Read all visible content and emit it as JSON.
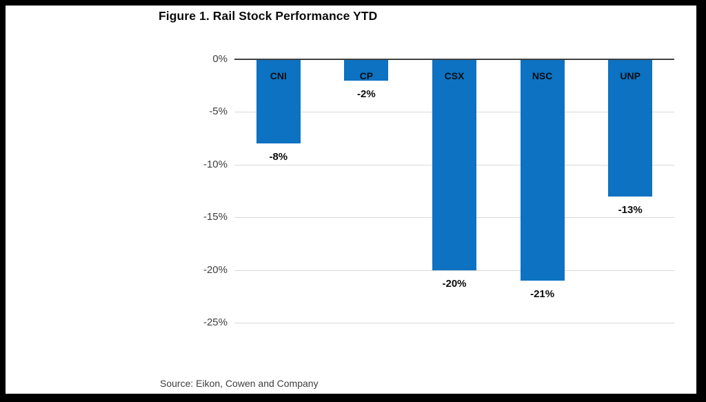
{
  "title": "Figure 1. Rail Stock Performance YTD",
  "source": "Source: Eikon, Cowen and Company",
  "frame": {
    "border_color": "#000000",
    "panel_background": "#ffffff"
  },
  "chart_data": {
    "type": "bar",
    "title": "Figure 1. Rail Stock Performance YTD",
    "categories": [
      "CNI",
      "CP",
      "CSX",
      "NSC",
      "UNP"
    ],
    "values": [
      -8,
      -2,
      -20,
      -21,
      -13
    ],
    "value_labels": [
      "-8%",
      "-2%",
      "-20%",
      "-21%",
      "-13%"
    ],
    "y_ticks": [
      "0%",
      "-5%",
      "-10%",
      "-15%",
      "-20%",
      "-25%"
    ],
    "y_tick_values": [
      0,
      -5,
      -10,
      -15,
      -20,
      -25
    ],
    "ylim": [
      -25,
      0
    ],
    "xlabel": "",
    "ylabel": "",
    "grid": true,
    "legend": false,
    "bar_color": "#0d72c2",
    "axis_color": "#404040",
    "gridline_color": "#d9d9d9",
    "category_label_position": "inside-top",
    "value_label_position": "below-bar"
  }
}
